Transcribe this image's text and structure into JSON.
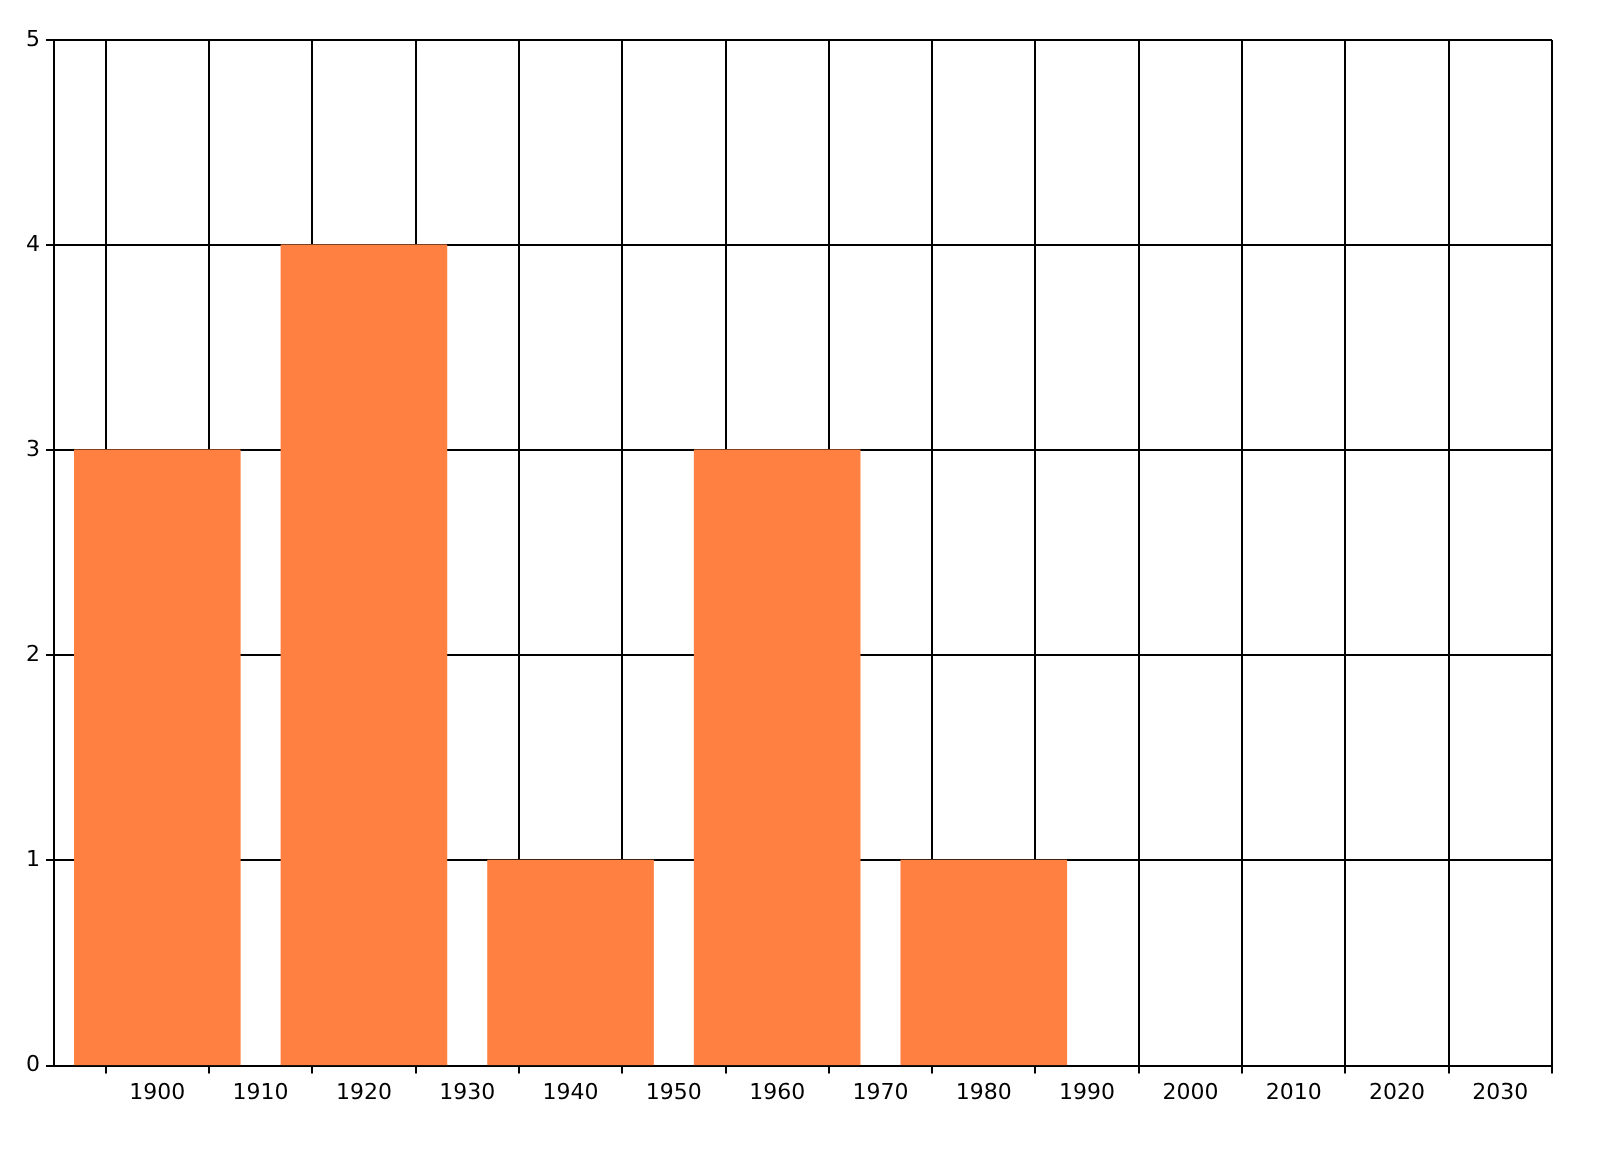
{
  "chart_data": {
    "type": "bar",
    "x": [
      1900,
      1920,
      1940,
      1960,
      1980
    ],
    "values": [
      3,
      4,
      1,
      3,
      1
    ],
    "color": "#ff8040",
    "xlim": [
      1890,
      2035
    ],
    "xticks": [
      1900,
      1910,
      1920,
      1930,
      1940,
      1950,
      1960,
      1970,
      1980,
      1990,
      2000,
      2010,
      2020,
      2030
    ],
    "ylim": [
      0,
      5
    ],
    "yticks": [
      0,
      1,
      2,
      3,
      4,
      5
    ],
    "grid": true
  }
}
